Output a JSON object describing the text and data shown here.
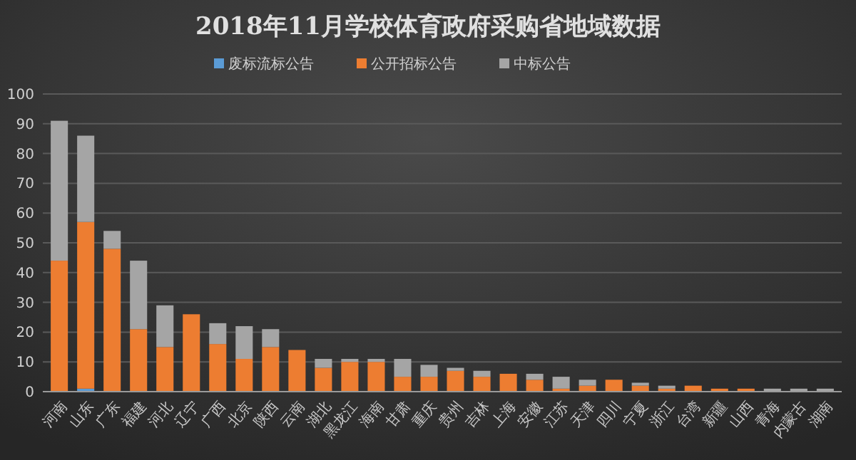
{
  "chart_data": {
    "type": "bar",
    "title": "2018年11月学校体育政府采购省地域数据",
    "stacked": true,
    "categories": [
      "河南",
      "山东",
      "广东",
      "福建",
      "河北",
      "辽宁",
      "广西",
      "北京",
      "陕西",
      "云南",
      "湖北",
      "黑龙江",
      "海南",
      "甘肃",
      "重庆",
      "贵州",
      "吉林",
      "上海",
      "安徽",
      "江苏",
      "天津",
      "四川",
      "宁夏",
      "浙江",
      "台湾",
      "新疆",
      "山西",
      "青海",
      "内蒙古",
      "湖南"
    ],
    "series": [
      {
        "name": "废标流标公告",
        "color": "#5b9bd5",
        "values": [
          0,
          1,
          0,
          0,
          0,
          0,
          0,
          0,
          0,
          0,
          0,
          0,
          0,
          0,
          0,
          0,
          0,
          0,
          0,
          0,
          0,
          0,
          0,
          0,
          0,
          0,
          0,
          0,
          0,
          0
        ]
      },
      {
        "name": "公开招标公告",
        "color": "#ed7d31",
        "values": [
          44,
          56,
          48,
          21,
          15,
          26,
          16,
          11,
          15,
          14,
          8,
          10,
          10,
          5,
          5,
          7,
          5,
          6,
          4,
          1,
          2,
          4,
          2,
          1,
          2,
          1,
          1,
          0,
          0,
          0
        ]
      },
      {
        "name": "中标公告",
        "color": "#a5a5a5",
        "values": [
          47,
          29,
          6,
          23,
          14,
          0,
          7,
          11,
          6,
          0,
          3,
          1,
          1,
          6,
          4,
          1,
          2,
          0,
          2,
          4,
          2,
          0,
          1,
          1,
          0,
          0,
          0,
          1,
          1,
          1
        ]
      }
    ],
    "ylim": [
      0,
      100
    ],
    "yticks": [
      0,
      10,
      20,
      30,
      40,
      50,
      60,
      70,
      80,
      90,
      100
    ],
    "grid": "y",
    "legend": "top"
  }
}
